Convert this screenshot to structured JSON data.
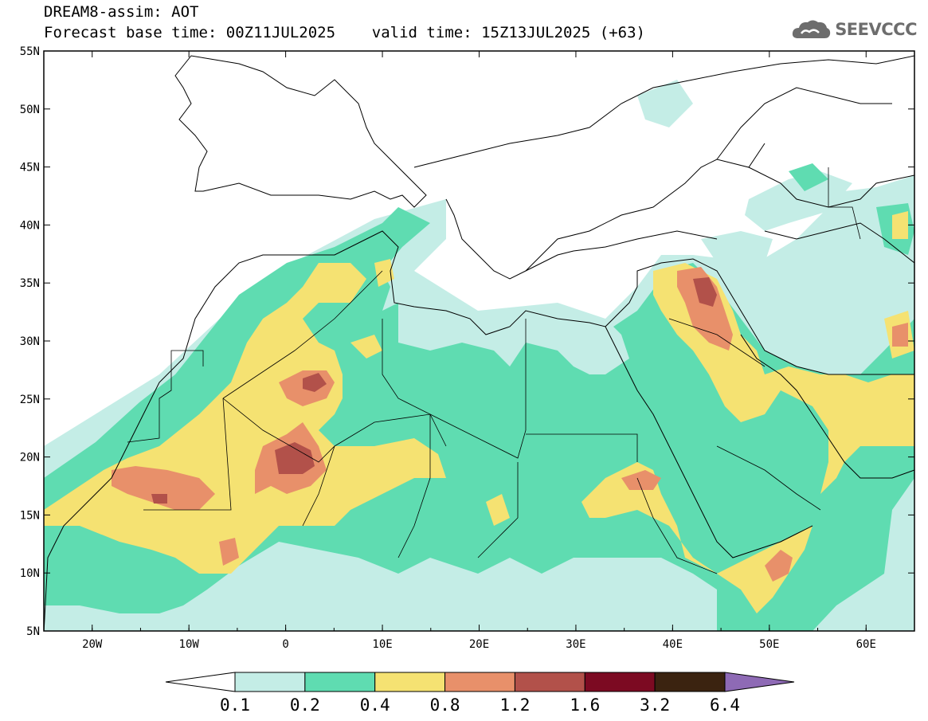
{
  "header": {
    "title": "DREAM8-assim: AOT",
    "subtitle": "Forecast base time: 00Z11JUL2025    valid time: 15Z13JUL2025 (+63)",
    "logo_text": "SEEVCCC",
    "logo_icon": "cloud-icon"
  },
  "map": {
    "lon_range": [
      -25,
      65
    ],
    "lat_range": [
      5,
      55
    ],
    "lon_ticks": [
      {
        "value": -20,
        "label": "20W"
      },
      {
        "value": -10,
        "label": "10W"
      },
      {
        "value": 0,
        "label": "0"
      },
      {
        "value": 10,
        "label": "10E"
      },
      {
        "value": 20,
        "label": "20E"
      },
      {
        "value": 30,
        "label": "30E"
      },
      {
        "value": 40,
        "label": "40E"
      },
      {
        "value": 50,
        "label": "50E"
      },
      {
        "value": 60,
        "label": "60E"
      }
    ],
    "lat_ticks": [
      {
        "value": 5,
        "label": "5N"
      },
      {
        "value": 10,
        "label": "10N"
      },
      {
        "value": 15,
        "label": "15N"
      },
      {
        "value": 20,
        "label": "20N"
      },
      {
        "value": 25,
        "label": "25N"
      },
      {
        "value": 30,
        "label": "30N"
      },
      {
        "value": 35,
        "label": "35N"
      },
      {
        "value": 40,
        "label": "40N"
      },
      {
        "value": 45,
        "label": "45N"
      },
      {
        "value": 50,
        "label": "50N"
      },
      {
        "value": 55,
        "label": "55N"
      }
    ]
  },
  "colorbar": {
    "levels": [
      "0.1",
      "0.2",
      "0.4",
      "0.8",
      "1.2",
      "1.6",
      "3.2",
      "6.4"
    ],
    "colors": [
      "#ffffff",
      "#c4ede6",
      "#5fdcb1",
      "#f5e272",
      "#e8906a",
      "#b2514a",
      "#7c0a22",
      "#3b2310",
      "#8e6ab5"
    ]
  }
}
